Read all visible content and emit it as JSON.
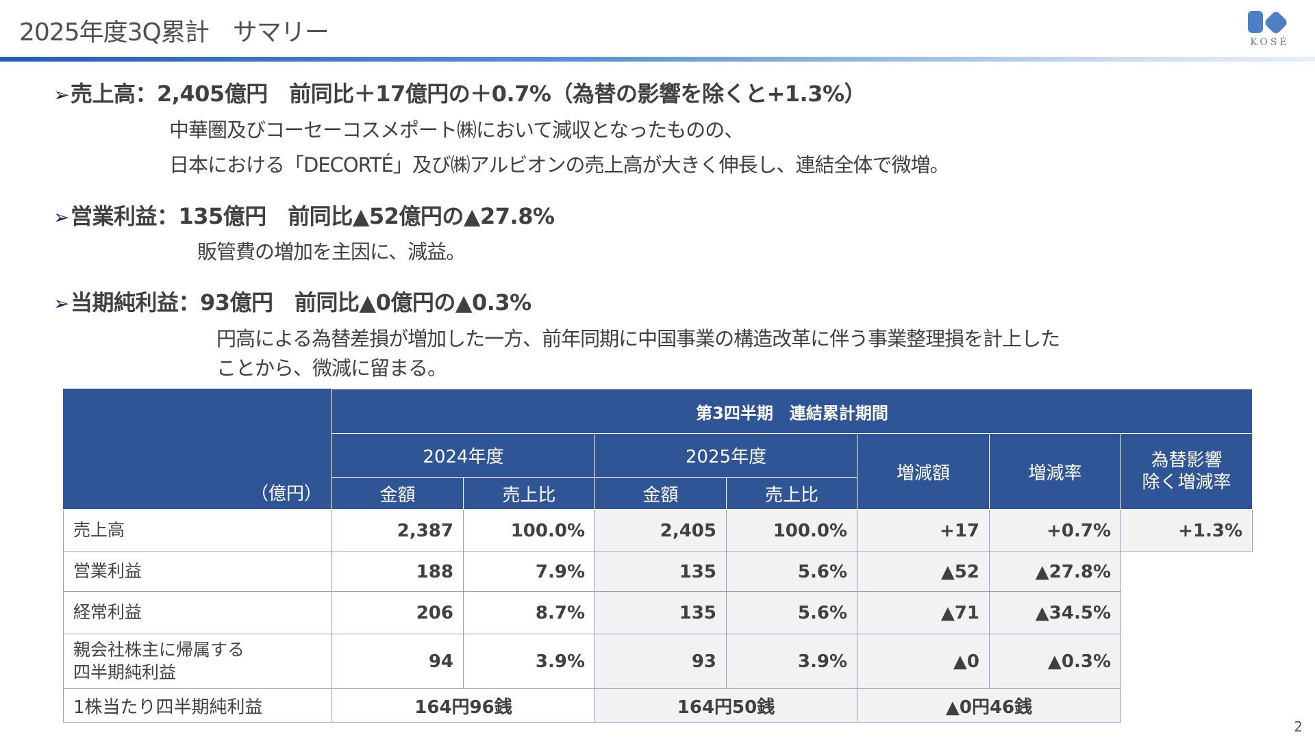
{
  "title": "2025年度3Q累計　サマリー",
  "logo": "KOSÉ",
  "sections": [
    {
      "heading": "売上高：2,405億円　前同比＋17億円の＋0.7%（為替の影響を除くと+1.3%）",
      "lines": [
        "中華圏及びコーセーコスメポート㈱において減収となったものの、",
        "日本における「DECORTÉ」及び㈱アルビオンの売上高が大きく伸長し、連結全体で微増。"
      ]
    },
    {
      "heading": "営業利益：135億円　前同比▲52億円の▲27.8%",
      "lines": [
        "販管費の増加を主因に、減益。"
      ]
    },
    {
      "heading": "当期純利益：93億円　前同比▲0億円の▲0.3%",
      "lines": [
        "円高による為替差損が増加した一方、前年同期に中国事業の構造改革に伴う事業整理損を計上した",
        "ことから、微減に留まる。"
      ]
    }
  ],
  "table": {
    "unit": "（億円）",
    "period": "第3四半期　連結累計期間",
    "fy2024": "2024年度",
    "fy2025": "2025年度",
    "amount": "金額",
    "ratio": "売上比",
    "change": "増減額",
    "change_rate": "増減率",
    "fx_excl": "為替影響\n除く増減率",
    "rows": [
      {
        "label": "売上高",
        "a24": "2,387",
        "r24": "100.0%",
        "a25": "2,405",
        "r25": "100.0%",
        "chg": "+17",
        "rate": "+0.7%",
        "fx": "+1.3%"
      },
      {
        "label": "営業利益",
        "a24": "188",
        "r24": "7.9%",
        "a25": "135",
        "r25": "5.6%",
        "chg": "▲52",
        "rate": "▲27.8%"
      },
      {
        "label": "経常利益",
        "a24": "206",
        "r24": "8.7%",
        "a25": "135",
        "r25": "5.6%",
        "chg": "▲71",
        "rate": "▲34.5%"
      },
      {
        "label": "親会社株主に帰属する\n四半期純利益",
        "a24": "94",
        "r24": "3.9%",
        "a25": "93",
        "r25": "3.9%",
        "chg": "▲0",
        "rate": "▲0.3%"
      }
    ],
    "eps": {
      "label": "1株当たり四半期純利益",
      "v24": "164円96銭",
      "v25": "164円50銭",
      "chg": "▲0円46銭"
    }
  },
  "page_number": "2",
  "colors": {
    "header": "#2f5597",
    "accent": "#1f5fb5",
    "shade": "#f2f2f2"
  }
}
